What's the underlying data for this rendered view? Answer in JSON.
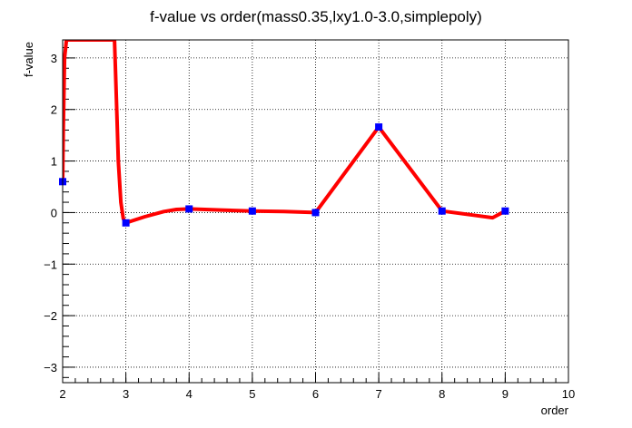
{
  "chart_data": {
    "type": "line",
    "title": "f-value vs order(mass0.35,lxy1.0-3.0,simplepoly)",
    "xlabel": "order",
    "ylabel": "f-value",
    "xlim": [
      2,
      10
    ],
    "ylim": [
      -3.3,
      3.35
    ],
    "x_ticks": [
      2,
      3,
      4,
      5,
      6,
      7,
      8,
      9,
      10
    ],
    "y_ticks": [
      -3,
      -2,
      -1,
      0,
      1,
      2,
      3
    ],
    "grid": true,
    "series": [
      {
        "color": "#0000ff",
        "marker": "square",
        "x": [
          2,
          3,
          4,
          5,
          6,
          7,
          8,
          9
        ],
        "y": [
          0.6,
          -0.2,
          0.07,
          0.03,
          0.0,
          1.66,
          0.03,
          0.03
        ]
      }
    ],
    "smooth_curve": {
      "color": "#ff0000",
      "x": [
        2,
        2.01,
        2.03,
        2.06,
        2.1,
        2.82,
        2.85,
        2.88,
        2.92,
        2.96,
        3.0,
        3.1,
        3.3,
        3.6,
        3.8,
        4.0,
        4.5,
        5.0,
        5.5,
        6.0,
        7.0,
        8.0,
        8.5,
        8.8,
        9.0
      ],
      "y": [
        0.6,
        1.6,
        3.0,
        3.35,
        3.35,
        3.35,
        2.2,
        1.0,
        0.2,
        -0.12,
        -0.2,
        -0.16,
        -0.08,
        0.02,
        0.06,
        0.07,
        0.05,
        0.03,
        0.02,
        0.0,
        1.66,
        0.03,
        -0.05,
        -0.1,
        0.03
      ]
    }
  }
}
